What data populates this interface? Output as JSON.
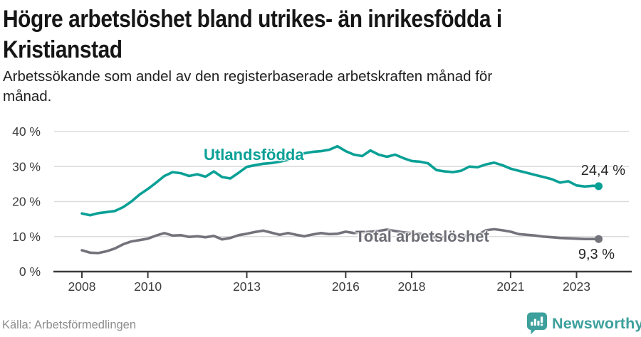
{
  "header": {
    "title_lines": [
      "Högre arbetslöshet bland utrikes- än inrikesfödda i",
      "Kristianstad"
    ],
    "subtitle_lines": [
      "Arbetssökande som andel av den registerbaserade arbetskraften månad för",
      "månad."
    ]
  },
  "chart_data": {
    "type": "line",
    "title": "Högre arbetslöshet bland utrikes- än inrikesfödda i Kristianstad",
    "subtitle": "Arbetssökande som andel av den registerbaserade arbetskraften månad för månad.",
    "unit": "%",
    "grid": "horizontal",
    "legend_position": "inline-labels",
    "xlim": [
      2007.5,
      2024.2
    ],
    "ylim": [
      0,
      42
    ],
    "x_ticks": [
      2008,
      2010,
      2013,
      2016,
      2018,
      2021,
      2023
    ],
    "y_ticks": [
      0,
      10,
      20,
      30,
      40
    ],
    "y_tick_labels": [
      "0 %",
      "10 %",
      "20 %",
      "30 %",
      "40 %"
    ],
    "x": [
      2008.0,
      2008.25,
      2008.5,
      2008.75,
      2009.0,
      2009.25,
      2009.5,
      2009.75,
      2010.0,
      2010.25,
      2010.5,
      2010.75,
      2011.0,
      2011.25,
      2011.5,
      2011.75,
      2012.0,
      2012.25,
      2012.5,
      2012.75,
      2013.0,
      2013.25,
      2013.5,
      2013.75,
      2014.0,
      2014.25,
      2014.5,
      2014.75,
      2015.0,
      2015.25,
      2015.5,
      2015.75,
      2016.0,
      2016.25,
      2016.5,
      2016.75,
      2017.0,
      2017.25,
      2017.5,
      2017.75,
      2018.0,
      2018.25,
      2018.5,
      2018.75,
      2019.0,
      2019.25,
      2019.5,
      2019.75,
      2020.0,
      2020.25,
      2020.5,
      2020.75,
      2021.0,
      2021.25,
      2021.5,
      2021.75,
      2022.0,
      2022.25,
      2022.5,
      2022.75,
      2023.0,
      2023.25,
      2023.5,
      2023.67
    ],
    "series": [
      {
        "name": "Utlandsfödda",
        "color": "#0aa096",
        "end_label": "24,4 %",
        "end_value": 24.4,
        "values": [
          16.6,
          16.1,
          16.7,
          17.0,
          17.3,
          18.4,
          20.0,
          22.0,
          23.6,
          25.4,
          27.3,
          28.4,
          28.1,
          27.3,
          27.8,
          27.1,
          28.6,
          27.0,
          26.6,
          28.2,
          29.9,
          30.4,
          30.8,
          31.0,
          31.4,
          31.9,
          32.6,
          33.8,
          34.2,
          34.4,
          34.8,
          35.8,
          34.4,
          33.4,
          33.0,
          34.6,
          33.4,
          32.8,
          33.4,
          32.4,
          31.6,
          31.4,
          30.9,
          29.0,
          28.6,
          28.4,
          28.8,
          30.0,
          29.8,
          30.6,
          31.1,
          30.4,
          29.4,
          28.8,
          28.2,
          27.6,
          27.0,
          26.4,
          25.4,
          25.8,
          24.6,
          24.3,
          24.5,
          24.4
        ]
      },
      {
        "name": "Total arbetslöshet",
        "color": "#73737b",
        "end_label": "9,3 %",
        "end_value": 9.3,
        "values": [
          6.1,
          5.4,
          5.3,
          5.8,
          6.6,
          7.8,
          8.6,
          9.0,
          9.4,
          10.3,
          11.0,
          10.3,
          10.4,
          9.9,
          10.1,
          9.8,
          10.2,
          9.2,
          9.6,
          10.4,
          10.8,
          11.3,
          11.7,
          11.1,
          10.5,
          11.0,
          10.5,
          10.1,
          10.6,
          11.0,
          10.7,
          10.8,
          11.4,
          11.0,
          11.2,
          11.4,
          11.6,
          12.0,
          11.6,
          11.2,
          11.0,
          10.8,
          10.2,
          9.7,
          9.9,
          10.2,
          10.0,
          10.3,
          10.5,
          11.8,
          12.1,
          11.8,
          11.4,
          10.7,
          10.5,
          10.3,
          10.0,
          9.8,
          9.6,
          9.5,
          9.4,
          9.3,
          9.3,
          9.3
        ]
      }
    ]
  },
  "footer": {
    "source": "Källa: Arbetsförmedlingen",
    "brand": "Newsworthy"
  },
  "colors": {
    "accent_teal": "#0aa096",
    "gray_line": "#73737b",
    "brand_teal": "#3da09c",
    "grid_line": "#dcdcdc",
    "axis_line": "#3b3b3b",
    "tick_text": "#3d3d3d"
  }
}
